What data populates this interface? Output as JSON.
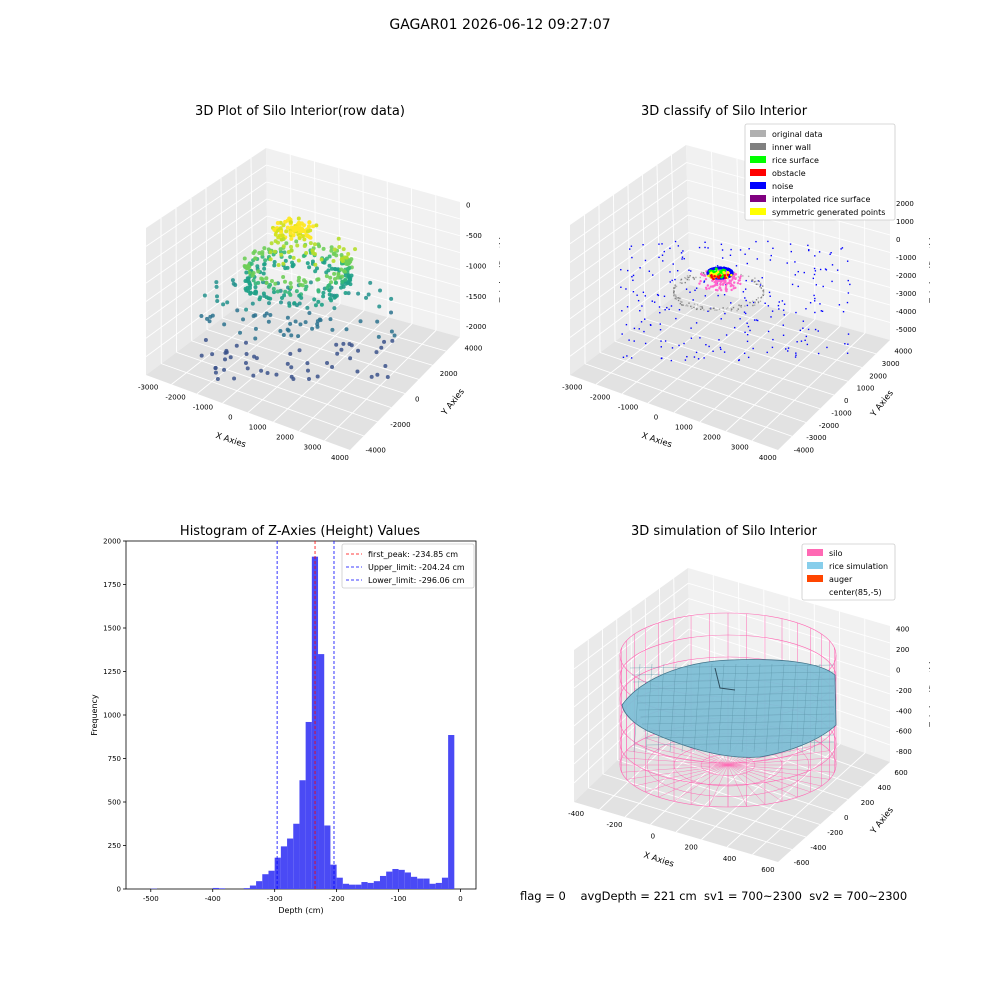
{
  "suptitle": "GAGAR01 2026-06-12 09:27:07",
  "panels": {
    "raw": {
      "title": "3D Plot of Silo Interior(row data)",
      "xlabel": "X Axies",
      "ylabel": "Y Axies",
      "zlabel": "Z Axies (Depth)",
      "xticks": [
        "-3000",
        "-2000",
        "-1000",
        "0",
        "1000",
        "2000",
        "3000",
        "4000"
      ],
      "yticks": [
        "-4000",
        "-2000",
        "0",
        "2000",
        "4000"
      ],
      "zticks": [
        "0",
        "-500",
        "-1000",
        "-1500",
        "-2000"
      ]
    },
    "classify": {
      "title": "3D classify of Silo Interior",
      "xlabel": "X Axies",
      "ylabel": "Y Axies",
      "zlabel": "Z Axies (Depth)",
      "xticks": [
        "-3000",
        "-2000",
        "-1000",
        "0",
        "1000",
        "2000",
        "3000",
        "4000"
      ],
      "yticks": [
        "-4000",
        "-3000",
        "-2000",
        "-1000",
        "0",
        "1000",
        "2000",
        "3000",
        "4000"
      ],
      "zticks": [
        "2000",
        "1000",
        "0",
        "-1000",
        "-2000",
        "-3000",
        "-4000",
        "-5000"
      ],
      "legend": [
        {
          "label": "original data",
          "color": "#b0b0b0"
        },
        {
          "label": "inner wall",
          "color": "#808080"
        },
        {
          "label": "rice surface",
          "color": "#00ff00"
        },
        {
          "label": "obstacle",
          "color": "#ff0000"
        },
        {
          "label": "noise",
          "color": "#0000ff"
        },
        {
          "label": "interpolated rice surface",
          "color": "#800080"
        },
        {
          "label": "symmetric generated points",
          "color": "#ffff00"
        }
      ]
    },
    "simulation": {
      "title": "3D simulation of Silo Interior",
      "xlabel": "X Axies",
      "ylabel": "Y Axies",
      "zlabel": "Z Axies (Depth)",
      "xticks": [
        "-400",
        "-200",
        "0",
        "200",
        "400",
        "600"
      ],
      "yticks": [
        "-600",
        "-400",
        "-200",
        "0",
        "200",
        "400",
        "600"
      ],
      "zticks": [
        "400",
        "200",
        "0",
        "-200",
        "-400",
        "-600",
        "-800"
      ],
      "legend": [
        {
          "label": "silo",
          "color": "#ff69b4"
        },
        {
          "label": "rice simulation",
          "color": "#87ceeb"
        },
        {
          "label": "auger",
          "color": "#ff4500"
        },
        {
          "label": "center(85,-5)",
          "color": ""
        }
      ]
    }
  },
  "chart_data": {
    "type": "bar",
    "title": "Histogram of Z-Axies (Height) Values",
    "xlabel": "Depth (cm)",
    "ylabel": "Frequency",
    "xlim": [
      -540,
      25
    ],
    "ylim": [
      0,
      2000
    ],
    "xticks": [
      -500,
      -400,
      -300,
      -200,
      -100,
      0
    ],
    "yticks": [
      0,
      250,
      500,
      750,
      1000,
      1250,
      1500,
      1750,
      2000
    ],
    "bin_width": 10,
    "bins": [
      {
        "x": -500,
        "v": 2
      },
      {
        "x": -400,
        "v": 6
      },
      {
        "x": -390,
        "v": 4
      },
      {
        "x": -350,
        "v": 5
      },
      {
        "x": -340,
        "v": 20
      },
      {
        "x": -330,
        "v": 45
      },
      {
        "x": -320,
        "v": 85
      },
      {
        "x": -310,
        "v": 105
      },
      {
        "x": -300,
        "v": 180
      },
      {
        "x": -290,
        "v": 245
      },
      {
        "x": -280,
        "v": 290
      },
      {
        "x": -270,
        "v": 375
      },
      {
        "x": -260,
        "v": 625
      },
      {
        "x": -250,
        "v": 960
      },
      {
        "x": -240,
        "v": 1910
      },
      {
        "x": -230,
        "v": 1350
      },
      {
        "x": -220,
        "v": 365
      },
      {
        "x": -210,
        "v": 140
      },
      {
        "x": -200,
        "v": 65
      },
      {
        "x": -190,
        "v": 30
      },
      {
        "x": -180,
        "v": 25
      },
      {
        "x": -170,
        "v": 25
      },
      {
        "x": -160,
        "v": 40
      },
      {
        "x": -150,
        "v": 35
      },
      {
        "x": -140,
        "v": 45
      },
      {
        "x": -130,
        "v": 75
      },
      {
        "x": -120,
        "v": 100
      },
      {
        "x": -110,
        "v": 115
      },
      {
        "x": -100,
        "v": 110
      },
      {
        "x": -90,
        "v": 95
      },
      {
        "x": -80,
        "v": 70
      },
      {
        "x": -70,
        "v": 60
      },
      {
        "x": -60,
        "v": 60
      },
      {
        "x": -50,
        "v": 30
      },
      {
        "x": -40,
        "v": 35
      },
      {
        "x": -30,
        "v": 65
      },
      {
        "x": -20,
        "v": 885
      }
    ],
    "vlines": [
      {
        "value": -234.85,
        "color": "#ff0000",
        "label": "first_peak: -234.85 cm"
      },
      {
        "value": -204.24,
        "color": "#0000ff",
        "label": "Upper_limit: -204.24 cm"
      },
      {
        "value": -296.06,
        "color": "#0000ff",
        "label": "Lower_limit: -296.06 cm"
      }
    ],
    "bar_color": "#4a4af5",
    "legend_position": "top-right"
  },
  "status": {
    "text": "flag = 0    avgDepth = 221 cm  sv1 = 700~2300  sv2 = 700~2300"
  }
}
